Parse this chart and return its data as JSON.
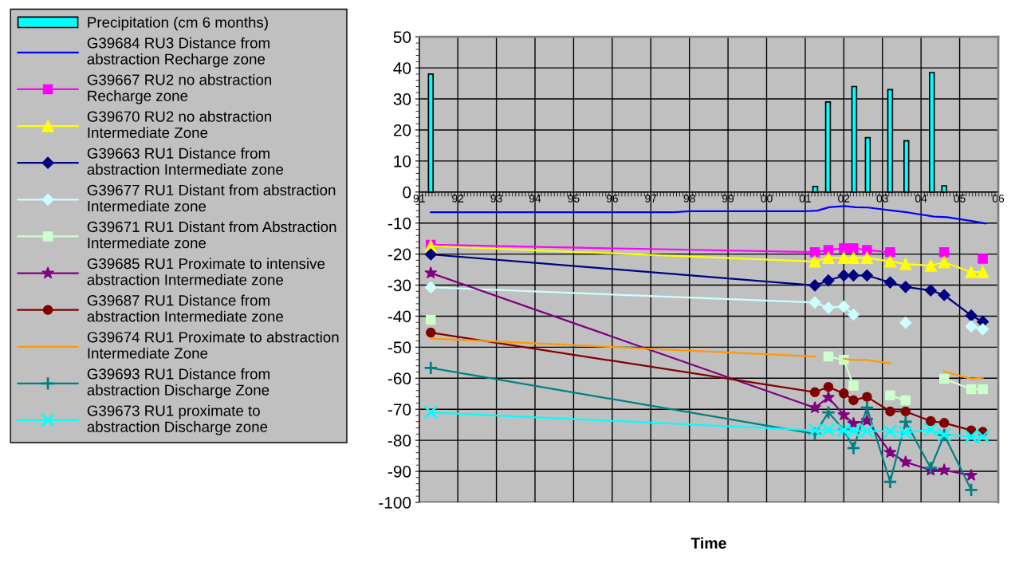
{
  "chart_data": {
    "type": "line",
    "xlabel": "Time",
    "xlim": [
      1991,
      2006
    ],
    "ylim": [
      -100,
      50
    ],
    "xticks": [
      {
        "value": 1991,
        "label": "91"
      },
      {
        "value": 1992,
        "label": "92"
      },
      {
        "value": 1993,
        "label": "93"
      },
      {
        "value": 1994,
        "label": "94"
      },
      {
        "value": 1995,
        "label": "95"
      },
      {
        "value": 1996,
        "label": "96"
      },
      {
        "value": 1997,
        "label": "97"
      },
      {
        "value": 1998,
        "label": "98"
      },
      {
        "value": 1999,
        "label": "99"
      },
      {
        "value": 2000,
        "label": "00"
      },
      {
        "value": 2001,
        "label": "01"
      },
      {
        "value": 2002,
        "label": "02"
      },
      {
        "value": 2003,
        "label": "03"
      },
      {
        "value": 2004,
        "label": "04"
      },
      {
        "value": 2005,
        "label": "05"
      },
      {
        "value": 2006,
        "label": "06"
      }
    ],
    "yticks": [
      -100,
      -90,
      -80,
      -70,
      -60,
      -50,
      -40,
      -30,
      -20,
      -10,
      0,
      10,
      20,
      30,
      40,
      50
    ],
    "grid": true,
    "legend": "left",
    "x": [
      1991.3,
      2001.25,
      2001.6,
      2002.0,
      2002.25,
      2002.6,
      2003.2,
      2003.6,
      2004.25,
      2004.6,
      2005.3,
      2005.6
    ],
    "series": [
      {
        "name": "Precipitation (cm 6 months)",
        "type": "bar",
        "color": "#00ffff",
        "x": [
          1991.3,
          2001.26,
          2001.59,
          2002.27,
          2002.62,
          2003.2,
          2003.62,
          2004.28,
          2004.6
        ],
        "values": [
          38,
          1.8,
          29,
          34,
          17.5,
          33,
          16.5,
          38.5,
          2
        ]
      },
      {
        "name": "G39684 RU3 Distance from\nabstraction Recharge zone",
        "color": "#0000ff",
        "marker": "none",
        "x": [
          1991.3,
          1997.6,
          1998.0,
          2001.0,
          2001.31,
          2001.62,
          2002.03,
          2002.3,
          2002.63,
          2003.27,
          2003.67,
          2004.34,
          2004.68,
          2005.34,
          2005.67
        ],
        "values": [
          -6.5,
          -6.5,
          -6.2,
          -6.2,
          -6.0,
          -4.9,
          -4.5,
          -4.9,
          -5.0,
          -6.0,
          -6.6,
          -7.9,
          -8.1,
          -9.4,
          -10.1
        ]
      },
      {
        "name": "G39667 RU2 no abstraction\nRecharge zone",
        "color": "#ff00ff",
        "marker": "square",
        "values": [
          -17.0,
          -19.4,
          -18.7,
          -18.1,
          -18.1,
          -18.7,
          -19.4,
          null,
          null,
          -19.4,
          null,
          -21.5
        ]
      },
      {
        "name": "G39670 RU2 no abstraction\nIntermediate Zone",
        "color": "#ffff00",
        "marker": "triangle",
        "values": [
          -17.4,
          -22.4,
          -21.2,
          -21.2,
          -21.2,
          -21.2,
          -22.4,
          -23.2,
          -23.7,
          -22.6,
          -25.8,
          -25.8
        ]
      },
      {
        "name": "G39663 RU1 Distance from\nabstraction Intermediate zone",
        "color": "#000080",
        "marker": "diamond",
        "values": [
          -20.1,
          -30.1,
          -28.5,
          -26.9,
          -26.9,
          -26.9,
          -29.1,
          -30.6,
          -31.7,
          -33.2,
          -39.8,
          -41.8
        ]
      },
      {
        "name": "G39677 RU1 Distant from abstraction\nIntermediate zone",
        "color": "#ccffff",
        "marker": "diamond",
        "values": [
          -30.7,
          -35.6,
          -37.3,
          -36.9,
          -39.5,
          null,
          null,
          -42.1,
          null,
          null,
          -43.3,
          -44.2
        ]
      },
      {
        "name": "G39671 RU1 Distant from Abstraction\nIntermediate zone",
        "color": "#ccffcc",
        "marker": "square",
        "values": [
          -41.2,
          null,
          -53.0,
          -54.1,
          -62.4,
          null,
          -65.5,
          -67.1,
          null,
          -60.2,
          -63.5,
          -63.5
        ]
      },
      {
        "name": "G39685 RU1 Proximate to intensive\nabstraction Intermediate zone",
        "color": "#800080",
        "marker": "star",
        "values": [
          -26.1,
          -69.5,
          -66.2,
          -71.8,
          -74.6,
          -73.6,
          -83.9,
          -87.0,
          -89.6,
          -89.6,
          -91.3,
          null
        ]
      },
      {
        "name": "G39687 RU1 Distance from\nabstraction Intermediate zone",
        "color": "#800000",
        "marker": "circle",
        "values": [
          -45.3,
          -64.5,
          -62.8,
          -64.9,
          -67.1,
          -66.0,
          -70.7,
          -70.7,
          -73.8,
          -74.4,
          -76.8,
          -77.3
        ]
      },
      {
        "name": "G39674 RU1 Proximate to abstraction\nIntermediate Zone",
        "color": "#ff9900",
        "marker": "none",
        "values": [
          -47.2,
          -53.0,
          null,
          -53.7,
          -54.1,
          -54.1,
          -55.2,
          null,
          null,
          -57.8,
          -60.2,
          -59.8
        ]
      },
      {
        "name": "G39693 RU1 Distance from\nabstraction Discharge Zone",
        "color": "#008080",
        "marker": "plus",
        "values": [
          -56.7,
          -77.9,
          -71.0,
          -76.6,
          -82.5,
          -69.5,
          -93.4,
          -74.0,
          -88.9,
          -78.3,
          -96.0,
          null
        ]
      },
      {
        "name": "G39673 RU1 proximate to\nabstraction Discharge zone",
        "color": "#00ffff",
        "marker": "cross",
        "values": [
          -71.0,
          -76.8,
          -76.6,
          -76.8,
          -77.0,
          -77.0,
          -77.2,
          -77.5,
          -76.6,
          -78.2,
          -78.8,
          -78.8
        ]
      }
    ]
  }
}
